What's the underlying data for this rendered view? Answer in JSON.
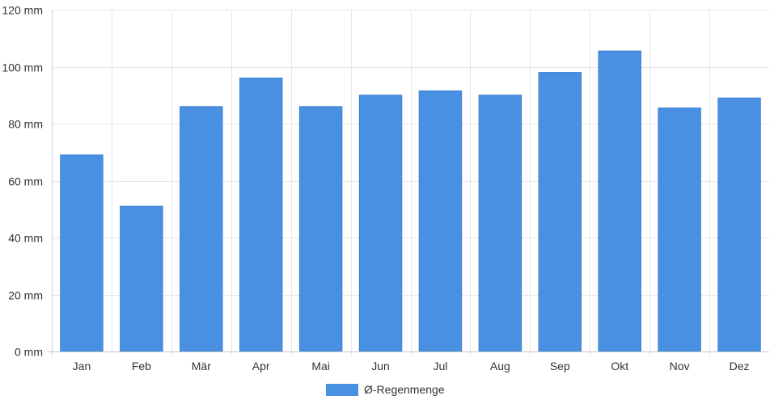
{
  "chart_data": {
    "type": "bar",
    "categories": [
      "Jan",
      "Feb",
      "Mär",
      "Apr",
      "Mai",
      "Jun",
      "Jul",
      "Aug",
      "Sep",
      "Okt",
      "Nov",
      "Dez"
    ],
    "series": [
      {
        "name": "Ø-Regenmenge",
        "color": "#4a90e2",
        "values": [
          69,
          51,
          86,
          96,
          86,
          90,
          91.5,
          90,
          98,
          105.5,
          85.5,
          89
        ]
      }
    ],
    "ylim": [
      0,
      120
    ],
    "yticks": [
      0,
      20,
      40,
      60,
      80,
      100,
      120
    ],
    "yunit": "mm",
    "grid": true,
    "legend_position": "bottom"
  }
}
